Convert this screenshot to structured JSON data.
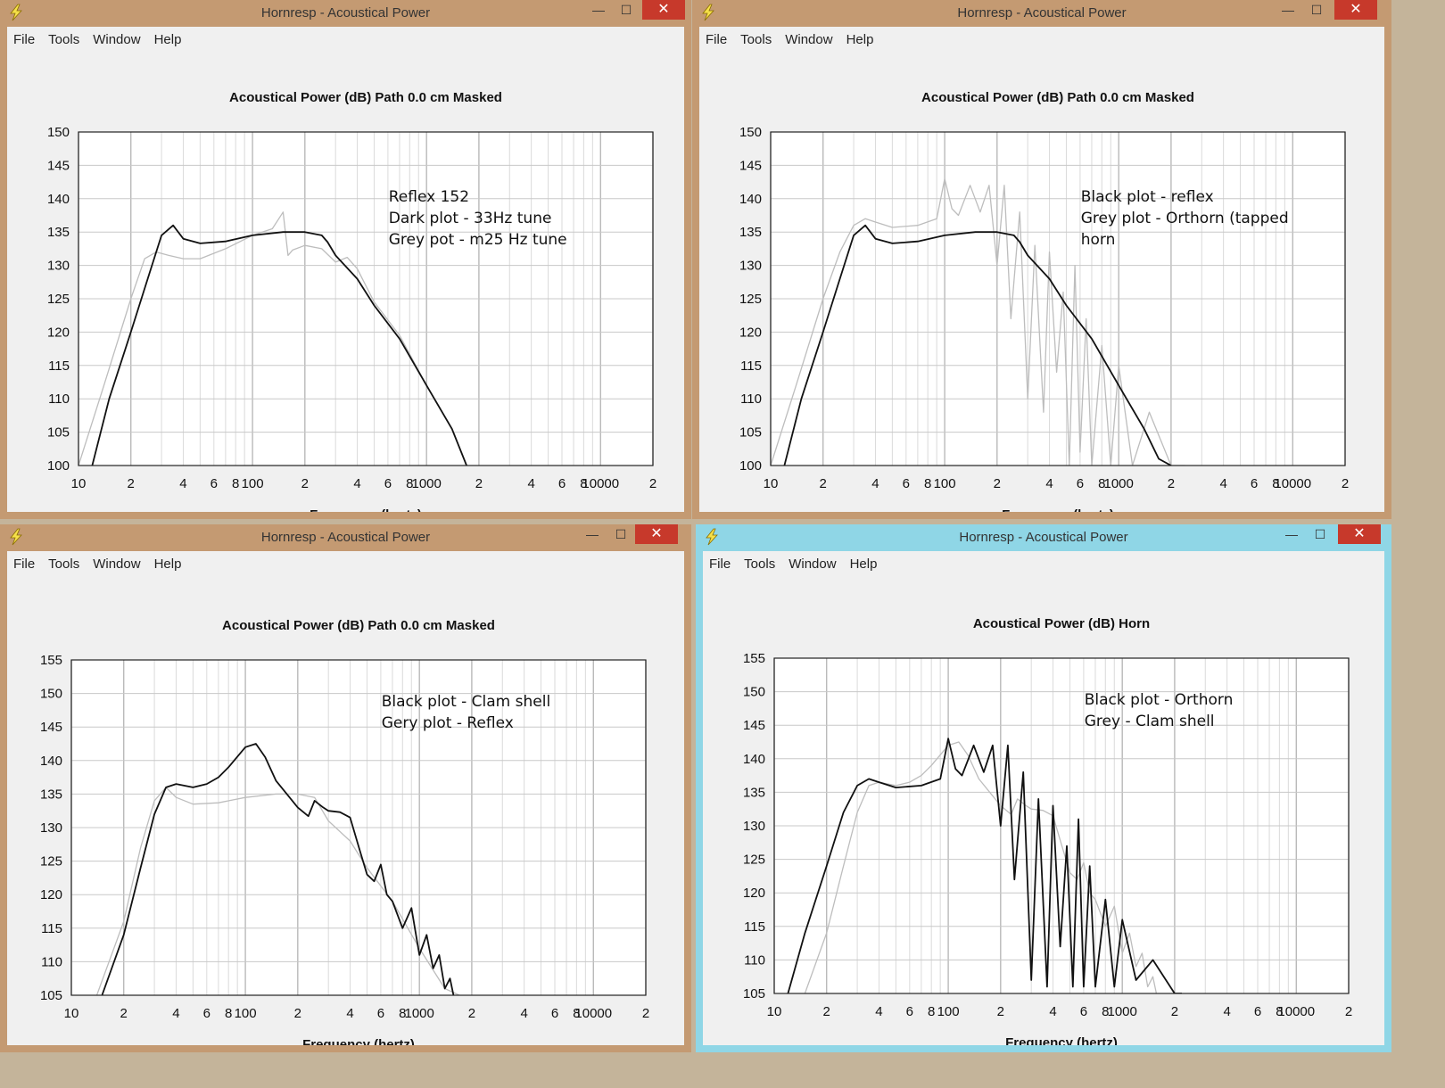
{
  "colors": {
    "frame_brown": "#c49a72",
    "frame_blue": "#8fd6e6",
    "close": "#c7392b",
    "grid": "#c8c8c8",
    "dark": "#111111",
    "grey_curve": "#bdbdbd"
  },
  "app_icon": "lightning-bolt-icon",
  "menu": [
    "File",
    "Tools",
    "Window",
    "Help"
  ],
  "x_ticks": [
    "10",
    "2",
    "4",
    "6",
    "8",
    "100",
    "2",
    "4",
    "6",
    "8",
    "1000",
    "2",
    "4",
    "6",
    "8",
    "10000",
    "2"
  ],
  "window_title": "Hornresp - Acoustical Power",
  "xlabel": "Frequency (hertz)",
  "chart_data": [
    {
      "type": "line",
      "title": "Acoustical Power (dB)   Path 0.0 cm   Masked",
      "xlabel": "Frequency (hertz)",
      "ylabel": "",
      "x_scale": "log",
      "xlim": [
        10,
        20000
      ],
      "ylim": [
        100,
        150
      ],
      "y_ticks": [
        100,
        105,
        110,
        115,
        120,
        125,
        130,
        135,
        140,
        145,
        150
      ],
      "annotation": [
        "Reflex 152",
        "Dark plot - 33Hz tune",
        "Grey pot  - m25 Hz tune"
      ],
      "series": [
        {
          "color": "grey",
          "x": [
            10,
            14,
            20,
            24,
            28,
            33,
            40,
            50,
            70,
            100,
            130,
            150,
            160,
            170,
            200,
            250,
            300,
            350,
            400,
            500,
            700,
            1000,
            1400,
            1700
          ],
          "y": [
            100,
            112,
            125,
            131,
            132,
            131.5,
            131,
            131,
            132.5,
            134.5,
            135.5,
            138,
            131.5,
            132.3,
            133,
            132.5,
            130.5,
            131.2,
            129.5,
            124.5,
            119.5,
            112,
            105.5,
            100
          ]
        },
        {
          "color": "black",
          "x": [
            12,
            15,
            20,
            25,
            30,
            35,
            40,
            50,
            70,
            100,
            150,
            200,
            250,
            270,
            300,
            400,
            500,
            700,
            1000,
            1400,
            1700
          ],
          "y": [
            100,
            110,
            120,
            128,
            134.5,
            136,
            134,
            133.3,
            133.6,
            134.5,
            135,
            135,
            134.5,
            133.5,
            131.5,
            128,
            124,
            119,
            112,
            105.5,
            100
          ]
        }
      ]
    },
    {
      "type": "line",
      "title": "Acoustical Power (dB)   Path 0.0 cm   Masked",
      "xlabel": "Frequency (hertz)",
      "ylabel": "",
      "x_scale": "log",
      "xlim": [
        10,
        20000
      ],
      "ylim": [
        100,
        150
      ],
      "y_ticks": [
        100,
        105,
        110,
        115,
        120,
        125,
        130,
        135,
        140,
        145,
        150
      ],
      "annotation": [
        "Black plot - reflex",
        "Grey plot - Orthorn (tapped",
        "horn"
      ],
      "series": [
        {
          "color": "grey",
          "x": [
            10,
            14,
            20,
            25,
            30,
            35,
            40,
            50,
            70,
            90,
            100,
            110,
            120,
            140,
            160,
            180,
            200,
            220,
            240,
            270,
            300,
            330,
            370,
            400,
            440,
            480,
            520,
            560,
            600,
            650,
            700,
            800,
            900,
            1000,
            1200,
            1500,
            2000,
            2400
          ],
          "y": [
            100,
            112,
            125,
            132,
            136,
            137,
            136.5,
            135.7,
            136,
            137,
            143,
            138.5,
            137.5,
            142,
            138,
            142,
            130,
            142,
            122,
            138,
            110,
            133,
            108,
            132,
            114,
            126,
            100,
            130,
            102,
            122,
            100,
            118,
            100,
            115,
            100,
            108,
            100,
            100
          ]
        },
        {
          "color": "black",
          "x": [
            12,
            15,
            20,
            25,
            30,
            35,
            40,
            50,
            70,
            100,
            150,
            200,
            250,
            270,
            300,
            400,
            500,
            700,
            1000,
            1400,
            1700,
            2000
          ],
          "y": [
            100,
            110,
            120,
            128,
            134.5,
            136,
            134,
            133.3,
            133.6,
            134.5,
            135,
            135,
            134.5,
            133.5,
            131.5,
            128,
            124,
            119,
            112,
            105.5,
            101,
            100
          ]
        }
      ]
    },
    {
      "type": "line",
      "title": "Acoustical Power (dB)   Path 0.0 cm   Masked",
      "xlabel": "Frequency (hertz)",
      "ylabel": "",
      "x_scale": "log",
      "xlim": [
        10,
        20000
      ],
      "ylim": [
        105,
        155
      ],
      "y_ticks": [
        105,
        110,
        115,
        120,
        125,
        130,
        135,
        140,
        145,
        150,
        155
      ],
      "annotation": [
        "Black plot - Clam shell",
        "Gery plot - Reflex"
      ],
      "series": [
        {
          "color": "grey",
          "x": [
            14,
            20,
            25,
            30,
            35,
            40,
            50,
            70,
            100,
            150,
            200,
            250,
            300,
            400,
            500,
            700,
            1000,
            1400,
            1700
          ],
          "y": [
            105,
            116,
            127,
            134,
            136,
            134.5,
            133.5,
            133.7,
            134.5,
            135,
            135,
            134.5,
            131,
            128,
            124,
            119,
            112,
            106,
            105
          ]
        },
        {
          "color": "black",
          "x": [
            15,
            20,
            25,
            30,
            35,
            40,
            50,
            60,
            70,
            80,
            100,
            115,
            130,
            150,
            200,
            230,
            250,
            280,
            300,
            350,
            400,
            450,
            500,
            550,
            600,
            650,
            700,
            800,
            900,
            1000,
            1100,
            1200,
            1300,
            1400,
            1500,
            1600,
            1700
          ],
          "y": [
            105,
            114,
            124,
            132,
            136,
            136.5,
            136,
            136.5,
            137.5,
            139,
            142,
            142.5,
            140.5,
            137,
            133,
            131.7,
            134,
            133,
            132.5,
            132.3,
            131.5,
            127,
            123,
            122,
            124.5,
            120,
            119,
            115,
            118,
            111,
            114,
            109,
            111,
            106,
            107.5,
            104,
            105
          ]
        }
      ]
    },
    {
      "type": "line",
      "title": "Acoustical Power (dB)   Horn",
      "xlabel": "Frequency (hertz)",
      "ylabel": "",
      "x_scale": "log",
      "xlim": [
        10,
        20000
      ],
      "ylim": [
        105,
        155
      ],
      "y_ticks": [
        105,
        110,
        115,
        120,
        125,
        130,
        135,
        140,
        145,
        150,
        155
      ],
      "annotation": [
        "Black plot - Orthorn",
        "Grey - Clam shell"
      ],
      "series": [
        {
          "color": "grey",
          "x": [
            15,
            20,
            25,
            30,
            35,
            40,
            50,
            60,
            70,
            80,
            100,
            115,
            130,
            150,
            200,
            230,
            250,
            280,
            300,
            350,
            400,
            450,
            500,
            550,
            600,
            650,
            700,
            800,
            900,
            1000,
            1100,
            1200,
            1300,
            1400,
            1500,
            1600,
            1700
          ],
          "y": [
            105,
            114,
            124,
            132,
            136,
            136.5,
            136,
            136.5,
            137.5,
            139,
            142,
            142.5,
            140.5,
            137,
            133,
            131.7,
            134,
            133,
            132.5,
            132.3,
            131.5,
            127,
            123,
            122,
            124.5,
            120,
            119,
            115,
            118,
            111,
            114,
            109,
            111,
            106,
            107.5,
            104,
            105
          ]
        },
        {
          "color": "black",
          "x": [
            12,
            15,
            20,
            25,
            30,
            35,
            40,
            50,
            70,
            90,
            100,
            110,
            120,
            140,
            160,
            180,
            200,
            220,
            240,
            270,
            300,
            330,
            370,
            400,
            440,
            480,
            520,
            560,
            600,
            650,
            700,
            800,
            900,
            1000,
            1200,
            1500,
            2000,
            2200
          ],
          "y": [
            105,
            114,
            124,
            132,
            136,
            137,
            136.5,
            135.7,
            136,
            137,
            143,
            138.5,
            137.5,
            142,
            138,
            142,
            130,
            142,
            122,
            138,
            107,
            134,
            106,
            133,
            112,
            127,
            106,
            131,
            106,
            124,
            106,
            119,
            106,
            116,
            107,
            110,
            105,
            105
          ]
        }
      ]
    }
  ]
}
